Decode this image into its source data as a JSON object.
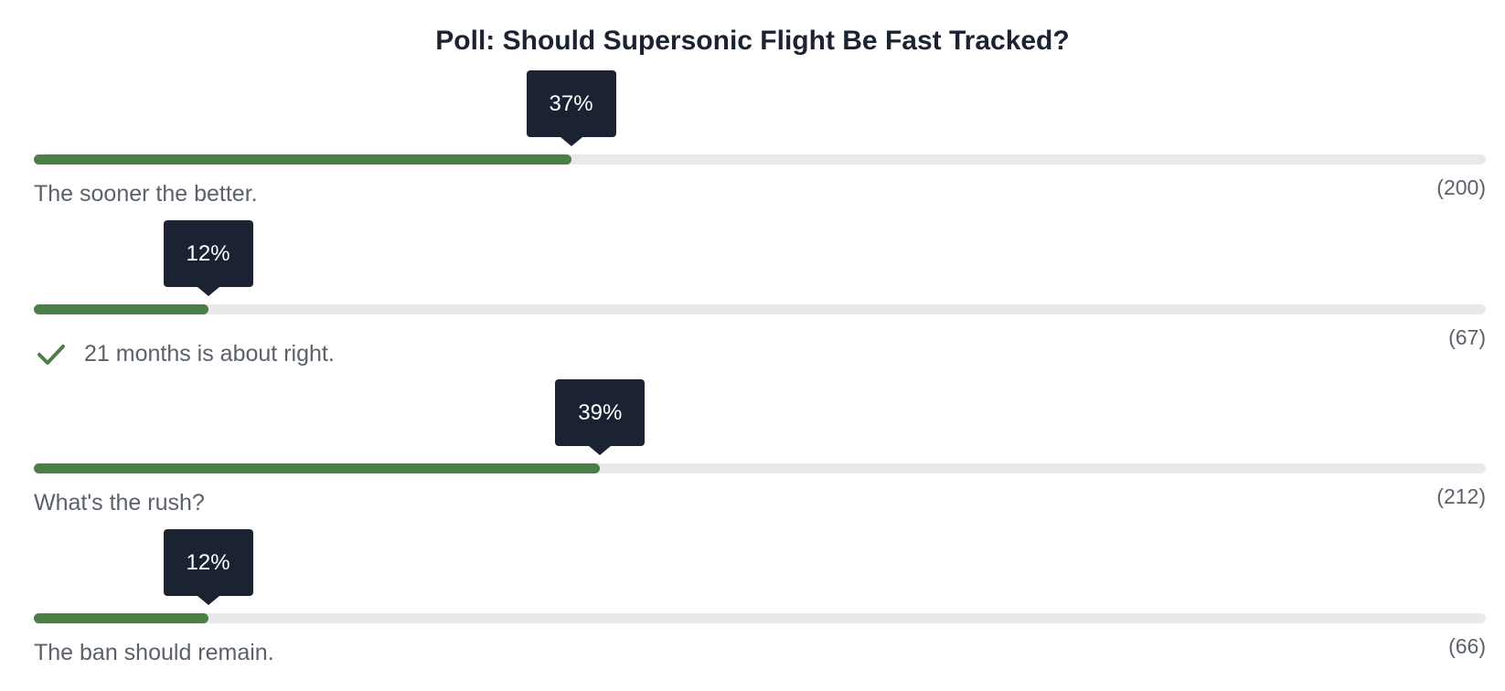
{
  "poll": {
    "title": "Poll: Should Supersonic Flight Be Fast Tracked?",
    "options": [
      {
        "label": "The sooner the better.",
        "percent": 37,
        "percent_label": "37%",
        "count_label": "(200)",
        "selected": false
      },
      {
        "label": "21 months is about right.",
        "percent": 12,
        "percent_label": "12%",
        "count_label": "(67)",
        "selected": true
      },
      {
        "label": "What's the rush?",
        "percent": 39,
        "percent_label": "39%",
        "count_label": "(212)",
        "selected": false
      },
      {
        "label": "The ban should remain.",
        "percent": 12,
        "percent_label": "12%",
        "count_label": "(66)",
        "selected": false
      }
    ]
  }
}
